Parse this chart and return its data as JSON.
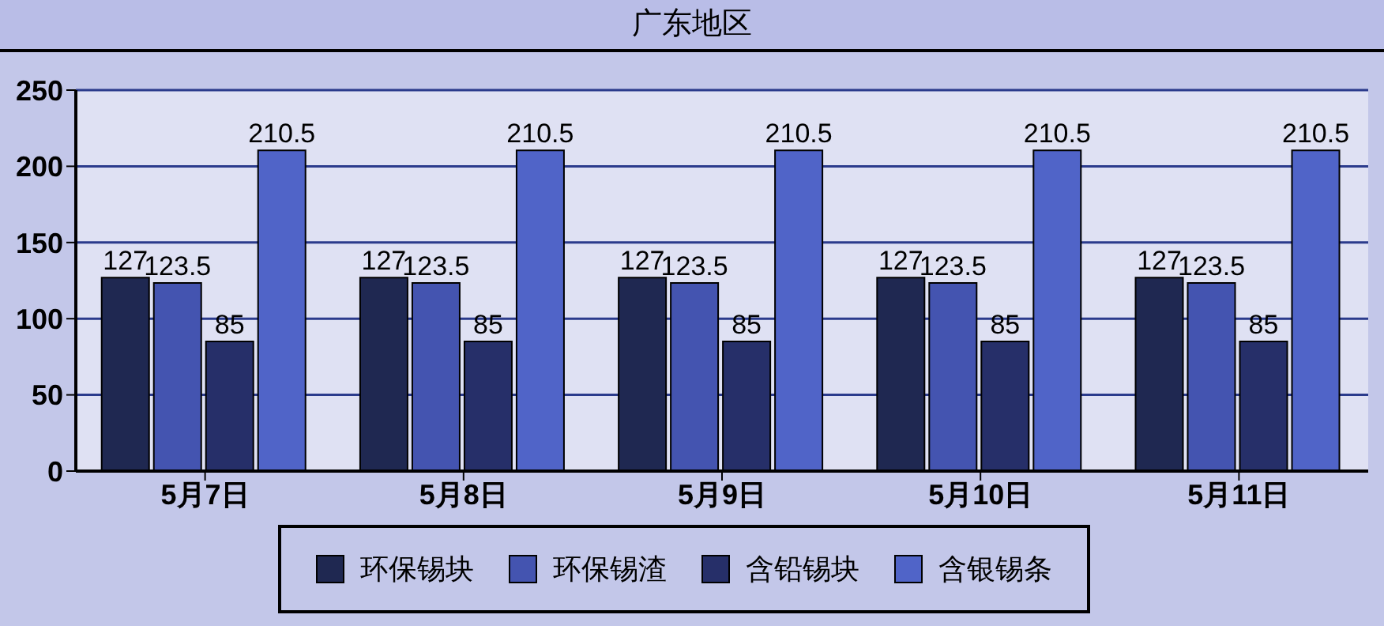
{
  "chart_data": {
    "type": "bar",
    "title": "广东地区",
    "categories": [
      "5月7日",
      "5月8日",
      "5月9日",
      "5月10日",
      "5月11日"
    ],
    "series": [
      {
        "name": "环保锡块",
        "color": "#1f2851",
        "values": [
          127,
          127,
          127,
          127,
          127
        ]
      },
      {
        "name": "环保锡渣",
        "color": "#4454b0",
        "values": [
          123.5,
          123.5,
          123.5,
          123.5,
          123.5
        ]
      },
      {
        "name": "含铅锡块",
        "color": "#262f69",
        "values": [
          85,
          85,
          85,
          85,
          85
        ]
      },
      {
        "name": "含银锡条",
        "color": "#5064c8",
        "values": [
          210.5,
          210.5,
          210.5,
          210.5,
          210.5
        ]
      }
    ],
    "ylim": [
      0,
      250
    ],
    "yticks": [
      0,
      50,
      100,
      150,
      200,
      250
    ],
    "grid": "y",
    "legend": "bottom",
    "data_labels": true
  }
}
